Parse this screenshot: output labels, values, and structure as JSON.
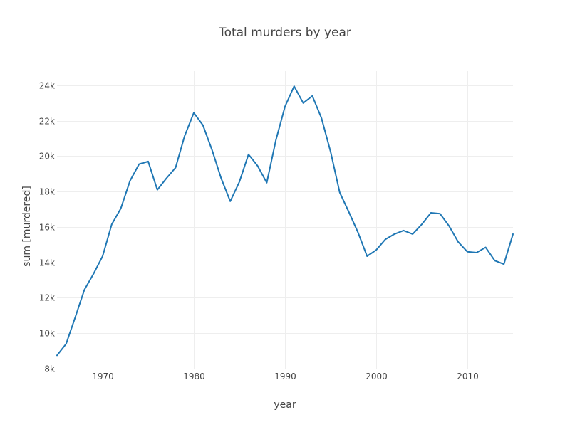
{
  "chart_data": {
    "type": "line",
    "title": "Total murders by year",
    "xlabel": "year",
    "ylabel": "sum [murdered]",
    "xlim": [
      1965,
      2015
    ],
    "ylim": [
      8000,
      24800
    ],
    "grid": true,
    "x_ticks": [
      {
        "value": 1970,
        "label": "1970"
      },
      {
        "value": 1980,
        "label": "1980"
      },
      {
        "value": 1990,
        "label": "1990"
      },
      {
        "value": 2000,
        "label": "2000"
      },
      {
        "value": 2010,
        "label": "2010"
      }
    ],
    "y_ticks": [
      {
        "value": 8000,
        "label": "8k"
      },
      {
        "value": 10000,
        "label": "10k"
      },
      {
        "value": 12000,
        "label": "12k"
      },
      {
        "value": 14000,
        "label": "14k"
      },
      {
        "value": 16000,
        "label": "16k"
      },
      {
        "value": 18000,
        "label": "18k"
      },
      {
        "value": 20000,
        "label": "20k"
      },
      {
        "value": 22000,
        "label": "22k"
      },
      {
        "value": 24000,
        "label": "24k"
      }
    ],
    "series": [
      {
        "color": "#1f77b4",
        "x": [
          1965,
          1966,
          1967,
          1968,
          1969,
          1970,
          1971,
          1972,
          1973,
          1974,
          1975,
          1976,
          1977,
          1978,
          1979,
          1980,
          1981,
          1982,
          1983,
          1984,
          1985,
          1986,
          1987,
          1988,
          1989,
          1990,
          1991,
          1992,
          1993,
          1994,
          1995,
          1996,
          1997,
          1998,
          1999,
          2000,
          2001,
          2002,
          2003,
          2004,
          2005,
          2006,
          2007,
          2008,
          2009,
          2010,
          2011,
          2012,
          2013,
          2014,
          2015
        ],
        "y": [
          8750,
          9400,
          10900,
          12450,
          13350,
          14350,
          16150,
          17050,
          18600,
          19550,
          19700,
          18100,
          18750,
          19350,
          21150,
          22450,
          21750,
          20350,
          18750,
          17450,
          18550,
          20100,
          19450,
          18500,
          20900,
          22800,
          23950,
          23000,
          23400,
          22150,
          20250,
          17950,
          16850,
          15700,
          14350,
          14700,
          15300,
          15600,
          15800,
          15600,
          16150,
          16800,
          16750,
          16050,
          15150,
          14600,
          14550,
          14850,
          14100,
          13900,
          15600
        ]
      }
    ]
  }
}
